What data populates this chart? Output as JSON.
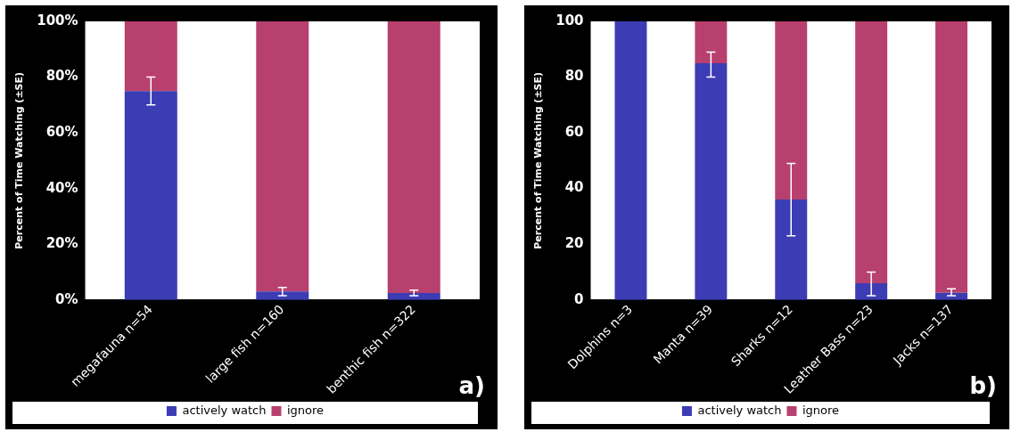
{
  "chart_data": [
    {
      "type": "bar",
      "stacked": true,
      "ylabel": "Percent of Time Watching (±SE)",
      "categories": [
        "megafauna n=54",
        "large fish n=160",
        "benthic fish n=322"
      ],
      "series": [
        {
          "name": "actively watch",
          "color": "#3c3cb4",
          "values": [
            75,
            3,
            2.5
          ],
          "errors": [
            5,
            1.5,
            1
          ]
        },
        {
          "name": "ignore",
          "color": "#b8406e",
          "values": [
            25,
            97,
            97.5
          ]
        }
      ],
      "ylim": [
        0,
        100
      ],
      "yticks": [
        {
          "value": 0,
          "label": "0%"
        },
        {
          "value": 20,
          "label": "20%"
        },
        {
          "value": 40,
          "label": "40%"
        },
        {
          "value": 60,
          "label": "60%"
        },
        {
          "value": 80,
          "label": "80%"
        },
        {
          "value": 100,
          "label": "100%"
        }
      ],
      "legend": "bottom",
      "annotations": [
        "a)"
      ]
    },
    {
      "type": "bar",
      "stacked": true,
      "ylabel": "Percent of Time Watching (±SE)",
      "categories": [
        "Dolphins n=3",
        "Manta n=39",
        "Sharks n=12",
        "Leather Bass n=23",
        "Jacks n=137"
      ],
      "series": [
        {
          "name": "actively watch",
          "color": "#3c3cb4",
          "values": [
            100,
            85,
            36,
            6,
            2.5
          ],
          "errors": [
            null,
            [
              80,
              89
            ],
            [
              23,
              49
            ],
            [
              1.5,
              10
            ],
            [
              1.5,
              4
            ]
          ]
        },
        {
          "name": "ignore",
          "color": "#b8406e",
          "values": [
            0,
            15,
            64,
            94,
            97.5
          ]
        }
      ],
      "ylim": [
        0,
        100
      ],
      "yticks": [
        0,
        20,
        40,
        60,
        80,
        100
      ],
      "legend": "bottom",
      "annotations": [
        "b)"
      ]
    }
  ]
}
